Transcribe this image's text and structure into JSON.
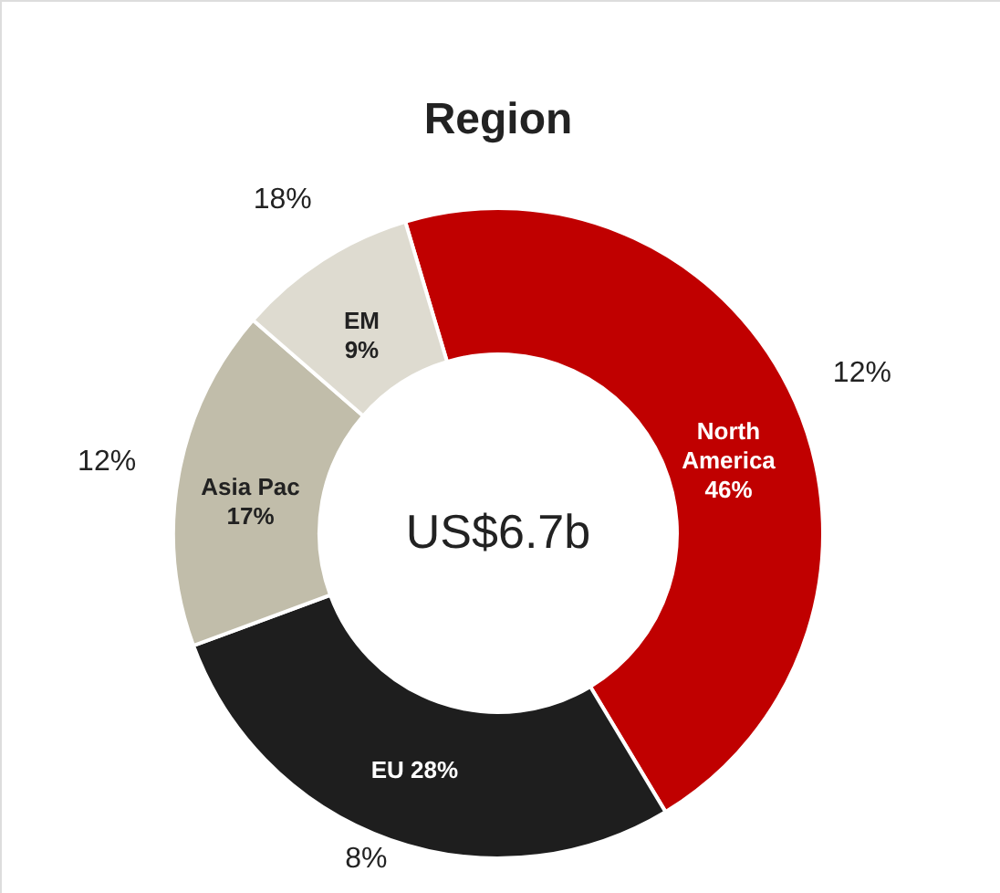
{
  "chart_data": {
    "type": "donut",
    "title": "Region",
    "categories": [
      "North America",
      "EU",
      "Asia Pac",
      "EM"
    ],
    "values": [
      46,
      28,
      17,
      9
    ],
    "value_labels": [
      "46%",
      "28%",
      "17%",
      "9%"
    ],
    "colors": [
      "#c00000",
      "#1e1e1e",
      "#c1bdaa",
      "#dedbd0"
    ],
    "annotations": [
      "US$6.7b",
      "12%",
      "8%",
      "12%",
      "18%"
    ]
  }
}
